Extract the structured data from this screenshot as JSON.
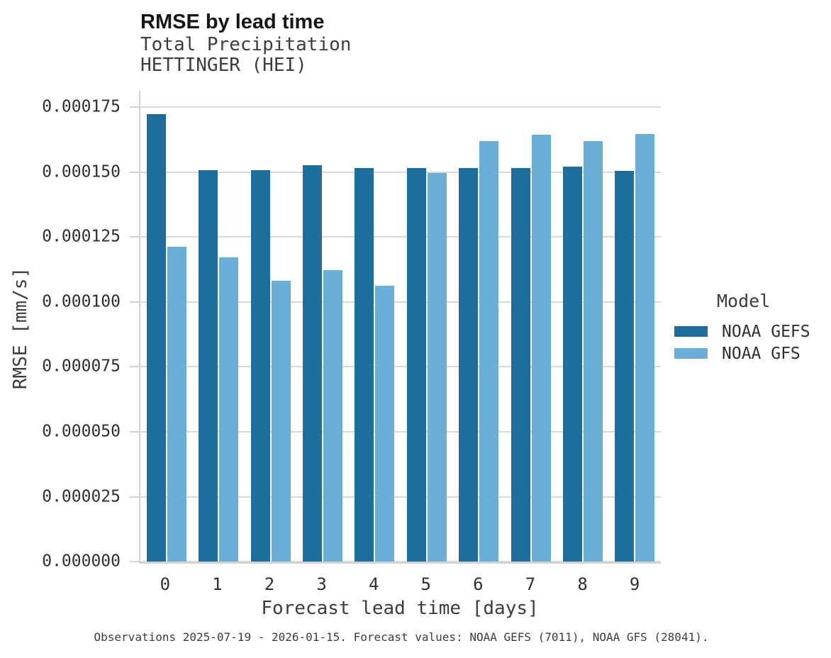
{
  "chart_data": {
    "type": "bar",
    "title": "RMSE by lead time",
    "subtitle_lines": [
      "Total Precipitation",
      "HETTINGER (HEI)"
    ],
    "xlabel": "Forecast lead time [days]",
    "ylabel": "RMSE [mm/s]",
    "caption": "Observations 2025-07-19 - 2026-01-15. Forecast values: NOAA GEFS (7011), NOAA GFS (28041).",
    "categories": [
      "0",
      "1",
      "2",
      "3",
      "4",
      "5",
      "6",
      "7",
      "8",
      "9"
    ],
    "series": [
      {
        "name": "NOAA GEFS",
        "color": "#1d6e9c",
        "values": [
          0.0001723,
          0.0001507,
          0.0001509,
          0.0001526,
          0.0001516,
          0.0001515,
          0.0001516,
          0.0001515,
          0.0001521,
          0.0001505
        ]
      },
      {
        "name": "NOAA GFS",
        "color": "#69afd7",
        "values": [
          0.0001212,
          0.0001172,
          0.0001082,
          0.0001122,
          0.0001062,
          0.0001497,
          0.0001621,
          0.0001646,
          0.0001621,
          0.0001648
        ]
      }
    ],
    "ylim": [
      0,
      0.0001814
    ],
    "yticks": [
      0,
      2.5e-05,
      5e-05,
      7.5e-05,
      0.0001,
      0.000125,
      0.00015,
      0.000175
    ],
    "ytick_labels": [
      "0.000000",
      "0.000025",
      "0.000050",
      "0.000075",
      "0.000100",
      "0.000125",
      "0.000150",
      "0.000175"
    ],
    "legend_title": "Model",
    "legend_position": "right",
    "grid": true
  },
  "colors": {
    "gridline": "#d9d9d9",
    "axis_line": "#d2d2d2",
    "noaa_gefs": "#1d6e9c",
    "noaa_gfs": "#69afd7"
  }
}
